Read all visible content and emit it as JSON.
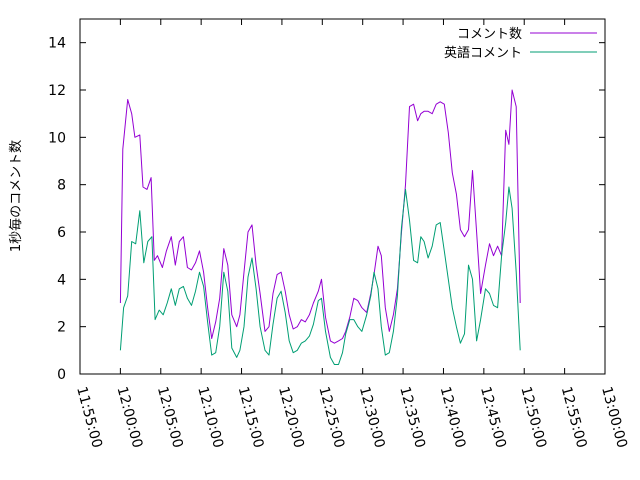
{
  "chart_data": {
    "type": "line",
    "title": "",
    "xlabel": "",
    "ylabel": "1秒毎のコメント数",
    "x_unit": "minutes",
    "xlim": [
      -5,
      60
    ],
    "ylim": [
      0,
      15
    ],
    "yticks": [
      0,
      2,
      4,
      6,
      8,
      10,
      12,
      14
    ],
    "xticks": [
      {
        "value": -5,
        "label": "11:55:00"
      },
      {
        "value": 0,
        "label": "12:00:00"
      },
      {
        "value": 5,
        "label": "12:05:00"
      },
      {
        "value": 10,
        "label": "12:10:00"
      },
      {
        "value": 15,
        "label": "12:15:00"
      },
      {
        "value": 20,
        "label": "12:20:00"
      },
      {
        "value": 25,
        "label": "12:25:00"
      },
      {
        "value": 30,
        "label": "12:30:00"
      },
      {
        "value": 35,
        "label": "12:35:00"
      },
      {
        "value": 40,
        "label": "12:40:00"
      },
      {
        "value": 45,
        "label": "12:45:00"
      },
      {
        "value": 50,
        "label": "12:50:00"
      },
      {
        "value": 55,
        "label": "12:55:00"
      },
      {
        "value": 60,
        "label": "13:00:00"
      }
    ],
    "legend": "top-right",
    "grid": false,
    "series": [
      {
        "name": "コメント数",
        "color": "#9400d3",
        "points": [
          [
            0.0,
            3.0
          ],
          [
            0.3,
            9.5
          ],
          [
            0.9,
            11.6
          ],
          [
            1.4,
            11.0
          ],
          [
            1.8,
            10.0
          ],
          [
            2.4,
            10.1
          ],
          [
            2.8,
            7.9
          ],
          [
            3.3,
            7.8
          ],
          [
            3.8,
            8.3
          ],
          [
            4.2,
            4.8
          ],
          [
            4.6,
            5.0
          ],
          [
            5.2,
            4.5
          ],
          [
            5.7,
            5.2
          ],
          [
            6.3,
            5.8
          ],
          [
            6.8,
            4.6
          ],
          [
            7.3,
            5.6
          ],
          [
            7.8,
            5.8
          ],
          [
            8.3,
            4.5
          ],
          [
            8.8,
            4.4
          ],
          [
            9.3,
            4.7
          ],
          [
            9.8,
            5.2
          ],
          [
            10.3,
            4.3
          ],
          [
            10.8,
            2.8
          ],
          [
            11.3,
            1.5
          ],
          [
            11.8,
            2.2
          ],
          [
            12.3,
            3.2
          ],
          [
            12.8,
            5.3
          ],
          [
            13.3,
            4.6
          ],
          [
            13.8,
            2.5
          ],
          [
            14.4,
            2.0
          ],
          [
            14.8,
            2.5
          ],
          [
            15.3,
            4.3
          ],
          [
            15.8,
            6.0
          ],
          [
            16.3,
            6.3
          ],
          [
            16.8,
            4.6
          ],
          [
            17.3,
            3.4
          ],
          [
            17.9,
            1.8
          ],
          [
            18.4,
            2.0
          ],
          [
            18.9,
            3.4
          ],
          [
            19.4,
            4.2
          ],
          [
            19.9,
            4.3
          ],
          [
            20.4,
            3.5
          ],
          [
            20.9,
            2.5
          ],
          [
            21.4,
            1.9
          ],
          [
            21.9,
            2.0
          ],
          [
            22.4,
            2.3
          ],
          [
            22.9,
            2.2
          ],
          [
            23.4,
            2.5
          ],
          [
            23.9,
            3.0
          ],
          [
            24.5,
            3.5
          ],
          [
            24.9,
            4.0
          ],
          [
            25.4,
            2.4
          ],
          [
            26.0,
            1.4
          ],
          [
            26.5,
            1.3
          ],
          [
            27.0,
            1.4
          ],
          [
            27.5,
            1.5
          ],
          [
            27.9,
            1.8
          ],
          [
            28.4,
            2.4
          ],
          [
            28.9,
            3.2
          ],
          [
            29.4,
            3.1
          ],
          [
            29.9,
            2.8
          ],
          [
            30.5,
            2.6
          ],
          [
            31.0,
            3.4
          ],
          [
            31.4,
            4.2
          ],
          [
            31.9,
            5.4
          ],
          [
            32.3,
            5.0
          ],
          [
            32.8,
            2.8
          ],
          [
            33.3,
            1.8
          ],
          [
            33.8,
            2.5
          ],
          [
            34.3,
            3.6
          ],
          [
            34.8,
            6.0
          ],
          [
            35.3,
            8.0
          ],
          [
            35.8,
            11.3
          ],
          [
            36.3,
            11.4
          ],
          [
            36.8,
            10.7
          ],
          [
            37.2,
            11.0
          ],
          [
            37.6,
            11.1
          ],
          [
            38.1,
            11.1
          ],
          [
            38.6,
            11.0
          ],
          [
            39.1,
            11.4
          ],
          [
            39.6,
            11.5
          ],
          [
            40.1,
            11.4
          ],
          [
            40.6,
            10.2
          ],
          [
            41.1,
            8.5
          ],
          [
            41.6,
            7.6
          ],
          [
            42.1,
            6.1
          ],
          [
            42.6,
            5.8
          ],
          [
            43.1,
            6.1
          ],
          [
            43.6,
            8.6
          ],
          [
            44.1,
            6.0
          ],
          [
            44.6,
            3.4
          ],
          [
            45.2,
            4.6
          ],
          [
            45.7,
            5.5
          ],
          [
            46.2,
            5.0
          ],
          [
            46.7,
            5.4
          ],
          [
            47.2,
            5.0
          ],
          [
            47.7,
            10.3
          ],
          [
            48.1,
            9.7
          ],
          [
            48.5,
            12.0
          ],
          [
            49.0,
            11.3
          ],
          [
            49.5,
            3.0
          ]
        ]
      },
      {
        "name": "英語コメント",
        "color": "#009e73",
        "points": [
          [
            0.0,
            1.0
          ],
          [
            0.4,
            2.8
          ],
          [
            0.9,
            3.3
          ],
          [
            1.4,
            5.6
          ],
          [
            1.9,
            5.5
          ],
          [
            2.4,
            6.9
          ],
          [
            2.9,
            4.7
          ],
          [
            3.4,
            5.6
          ],
          [
            3.9,
            5.8
          ],
          [
            4.3,
            2.3
          ],
          [
            4.8,
            2.7
          ],
          [
            5.3,
            2.5
          ],
          [
            5.8,
            3.0
          ],
          [
            6.3,
            3.6
          ],
          [
            6.8,
            2.9
          ],
          [
            7.3,
            3.6
          ],
          [
            7.8,
            3.7
          ],
          [
            8.3,
            3.2
          ],
          [
            8.8,
            2.9
          ],
          [
            9.3,
            3.5
          ],
          [
            9.8,
            4.3
          ],
          [
            10.3,
            3.7
          ],
          [
            10.8,
            2.2
          ],
          [
            11.3,
            0.8
          ],
          [
            11.8,
            0.9
          ],
          [
            12.3,
            2.0
          ],
          [
            12.8,
            4.3
          ],
          [
            13.3,
            3.5
          ],
          [
            13.8,
            1.1
          ],
          [
            14.4,
            0.7
          ],
          [
            14.8,
            1.0
          ],
          [
            15.3,
            2.0
          ],
          [
            15.8,
            4.1
          ],
          [
            16.3,
            4.9
          ],
          [
            16.8,
            3.6
          ],
          [
            17.3,
            2.0
          ],
          [
            17.9,
            1.0
          ],
          [
            18.4,
            0.8
          ],
          [
            18.9,
            2.1
          ],
          [
            19.4,
            3.2
          ],
          [
            19.9,
            3.5
          ],
          [
            20.4,
            2.6
          ],
          [
            20.9,
            1.4
          ],
          [
            21.4,
            0.9
          ],
          [
            21.9,
            1.0
          ],
          [
            22.4,
            1.3
          ],
          [
            22.9,
            1.4
          ],
          [
            23.4,
            1.6
          ],
          [
            23.9,
            2.1
          ],
          [
            24.5,
            3.1
          ],
          [
            24.9,
            3.2
          ],
          [
            25.4,
            1.8
          ],
          [
            26.0,
            0.7
          ],
          [
            26.5,
            0.4
          ],
          [
            27.0,
            0.4
          ],
          [
            27.5,
            0.9
          ],
          [
            27.9,
            1.7
          ],
          [
            28.4,
            2.3
          ],
          [
            28.9,
            2.3
          ],
          [
            29.4,
            2.0
          ],
          [
            29.9,
            1.8
          ],
          [
            30.5,
            2.5
          ],
          [
            31.0,
            3.3
          ],
          [
            31.4,
            4.3
          ],
          [
            31.9,
            3.6
          ],
          [
            32.3,
            2.0
          ],
          [
            32.8,
            0.8
          ],
          [
            33.3,
            0.9
          ],
          [
            33.8,
            1.8
          ],
          [
            34.3,
            3.3
          ],
          [
            34.8,
            6.2
          ],
          [
            35.3,
            7.8
          ],
          [
            35.8,
            6.5
          ],
          [
            36.3,
            4.8
          ],
          [
            36.8,
            4.7
          ],
          [
            37.2,
            5.8
          ],
          [
            37.6,
            5.6
          ],
          [
            38.1,
            4.9
          ],
          [
            38.6,
            5.4
          ],
          [
            39.1,
            6.3
          ],
          [
            39.6,
            6.4
          ],
          [
            40.1,
            5.2
          ],
          [
            40.6,
            4.0
          ],
          [
            41.1,
            2.8
          ],
          [
            41.6,
            2.0
          ],
          [
            42.1,
            1.3
          ],
          [
            42.6,
            1.7
          ],
          [
            43.1,
            4.6
          ],
          [
            43.6,
            4.0
          ],
          [
            44.1,
            1.4
          ],
          [
            44.6,
            2.3
          ],
          [
            45.2,
            3.6
          ],
          [
            45.7,
            3.4
          ],
          [
            46.2,
            2.9
          ],
          [
            46.7,
            2.8
          ],
          [
            47.2,
            5.0
          ],
          [
            47.7,
            6.4
          ],
          [
            48.1,
            7.9
          ],
          [
            48.5,
            7.0
          ],
          [
            49.0,
            4.3
          ],
          [
            49.5,
            1.0
          ]
        ]
      }
    ]
  }
}
